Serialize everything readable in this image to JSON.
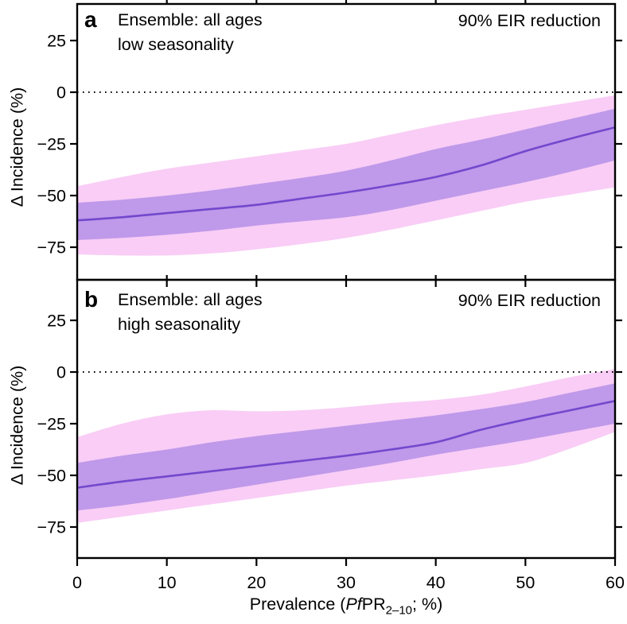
{
  "figure": {
    "xaxis_label": {
      "prefix": "Prevalence (",
      "italic": "Pf",
      "mid": "PR",
      "sub": "2–10",
      "suffix": "; %)"
    },
    "colors": {
      "outer_band": "#f9cdf5",
      "inner_band": "#bf99ea",
      "median_line": "#7248cd",
      "axis": "#000000",
      "text": "#000000"
    }
  },
  "chart_data": [
    {
      "type": "area",
      "panel_letter": "a",
      "title": "Ensemble: all ages",
      "subtitle": "low seasonality",
      "annotation": "90% EIR reduction",
      "ylabel": "Δ Incidence (%)",
      "xlabel": "Prevalence (PfPR2–10; %)",
      "x": [
        0,
        5,
        10,
        15,
        20,
        25,
        30,
        35,
        40,
        45,
        50,
        55,
        60
      ],
      "series": [
        {
          "name": "median",
          "values": [
            -62,
            -60.5,
            -58.5,
            -56.5,
            -54.5,
            -51.5,
            -48.5,
            -45,
            -41,
            -35.5,
            -28.5,
            -22.5,
            -17
          ]
        },
        {
          "name": "inner_band_upper",
          "values": [
            -53.5,
            -52,
            -50,
            -47.5,
            -44.5,
            -41.5,
            -38,
            -33,
            -27.5,
            -23,
            -18,
            -13,
            -8
          ]
        },
        {
          "name": "inner_band_lower",
          "values": [
            -71.5,
            -70.5,
            -69,
            -67,
            -64.5,
            -62.5,
            -60.5,
            -57,
            -52.5,
            -48,
            -43.5,
            -38.5,
            -33
          ]
        },
        {
          "name": "outer_band_upper",
          "values": [
            -45.5,
            -41,
            -37,
            -34,
            -31,
            -28,
            -25,
            -20.5,
            -16,
            -12,
            -8.5,
            -5,
            -1.5
          ]
        },
        {
          "name": "outer_band_lower",
          "values": [
            -78.5,
            -79,
            -79,
            -78,
            -76,
            -73.5,
            -70.5,
            -66.5,
            -62,
            -57.5,
            -53,
            -49.5,
            -46
          ]
        }
      ],
      "xlim": [
        0,
        60
      ],
      "ylim": [
        -90,
        43
      ],
      "xticks": [
        0,
        10,
        20,
        30,
        40,
        50,
        60
      ],
      "xtick_labels": [
        "0",
        "10",
        "20",
        "30",
        "40",
        "50",
        "60"
      ],
      "yticks": [
        25,
        0,
        -25,
        -50,
        -75
      ],
      "ytick_labels": [
        "25",
        "0",
        "−25",
        "−50",
        "−75"
      ],
      "zero_line": true,
      "grid": false,
      "legend": "none"
    },
    {
      "type": "area",
      "panel_letter": "b",
      "title": "Ensemble: all ages",
      "subtitle": "high seasonality",
      "annotation": "90% EIR reduction",
      "ylabel": "Δ Incidence (%)",
      "xlabel": "Prevalence (PfPR2–10; %)",
      "x": [
        0,
        5,
        10,
        15,
        20,
        25,
        30,
        35,
        40,
        45,
        50,
        55,
        60
      ],
      "series": [
        {
          "name": "median",
          "values": [
            -56,
            -53,
            -50.5,
            -48,
            -45.5,
            -43,
            -40.5,
            -37.5,
            -34,
            -28,
            -23,
            -18.5,
            -14
          ]
        },
        {
          "name": "inner_band_upper",
          "values": [
            -44,
            -40.5,
            -37.5,
            -34,
            -31,
            -28.5,
            -26,
            -23.5,
            -21,
            -18,
            -14.5,
            -10,
            -5.5
          ]
        },
        {
          "name": "inner_band_lower",
          "values": [
            -67,
            -64.5,
            -61.5,
            -58,
            -54.5,
            -51,
            -47.5,
            -44,
            -40,
            -36.5,
            -33,
            -29,
            -25
          ]
        },
        {
          "name": "outer_band_upper",
          "values": [
            -31.5,
            -25,
            -20.5,
            -18.5,
            -19,
            -18.5,
            -17,
            -15,
            -13.5,
            -11,
            -7,
            -2.5,
            1.5
          ]
        },
        {
          "name": "outer_band_lower",
          "values": [
            -73,
            -70,
            -67,
            -64,
            -61,
            -58,
            -55,
            -52.5,
            -50,
            -47,
            -44,
            -37,
            -29
          ]
        }
      ],
      "xlim": [
        0,
        60
      ],
      "ylim": [
        -90,
        44
      ],
      "xticks": [
        0,
        10,
        20,
        30,
        40,
        50,
        60
      ],
      "xtick_labels": [
        "0",
        "10",
        "20",
        "30",
        "40",
        "50",
        "60"
      ],
      "yticks": [
        25,
        0,
        -25,
        -50,
        -75
      ],
      "ytick_labels": [
        "25",
        "0",
        "−25",
        "−50",
        "−75"
      ],
      "zero_line": true,
      "grid": false,
      "legend": "none"
    }
  ]
}
